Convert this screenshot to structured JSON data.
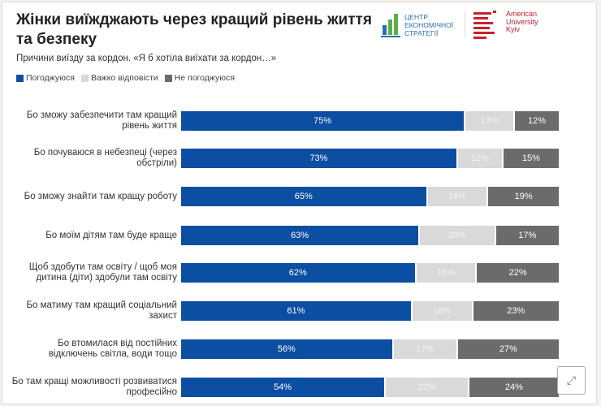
{
  "chart_data": {
    "type": "bar",
    "orientation": "horizontal",
    "stacked": true,
    "title": "Жінки виїжджають через кращий рівень життя та безпеку",
    "subtitle": "Причини виїзду за кордон. «Я б хотіла виїхати за кордон…»",
    "legend_position": "top-left",
    "grid": false,
    "xlim": [
      0,
      100
    ],
    "categories": [
      "Бо зможу забезпечити там кращий рівень життя",
      "Бо почуваюся в небезпеці (через обстріли)",
      "Бо зможу знайти там кращу роботу",
      "Бо моїм дітям там буде краще",
      "Щоб здобути там освіту / щоб моя дитина (діти) здобули там освіту",
      "Бо матиму там кращий соціальний захист",
      "Бо втомилася від постійних відключень світла, води тощо",
      "Бо там кращі можливості розвиватися професійно"
    ],
    "series": [
      {
        "name": "Погоджуюся",
        "color": "#0b4ea2",
        "values": [
          75,
          73,
          65,
          63,
          62,
          61,
          56,
          54
        ]
      },
      {
        "name": "Важко відповісти",
        "color": "#d9d9d9",
        "values": [
          13,
          12,
          16,
          20,
          16,
          16,
          17,
          22
        ]
      },
      {
        "name": "Не погоджуюся",
        "color": "#6b6b6b",
        "values": [
          12,
          15,
          19,
          17,
          22,
          23,
          27,
          24
        ]
      }
    ],
    "value_suffix": "%"
  },
  "logos": {
    "ces": [
      "ЦЕНТР",
      "ЕКОНОМІЧНОЇ",
      "СТРАТЕГІЇ"
    ],
    "auk": [
      "American",
      "University",
      "Kyiv"
    ]
  },
  "icons": {
    "expand": "expand-icon"
  }
}
